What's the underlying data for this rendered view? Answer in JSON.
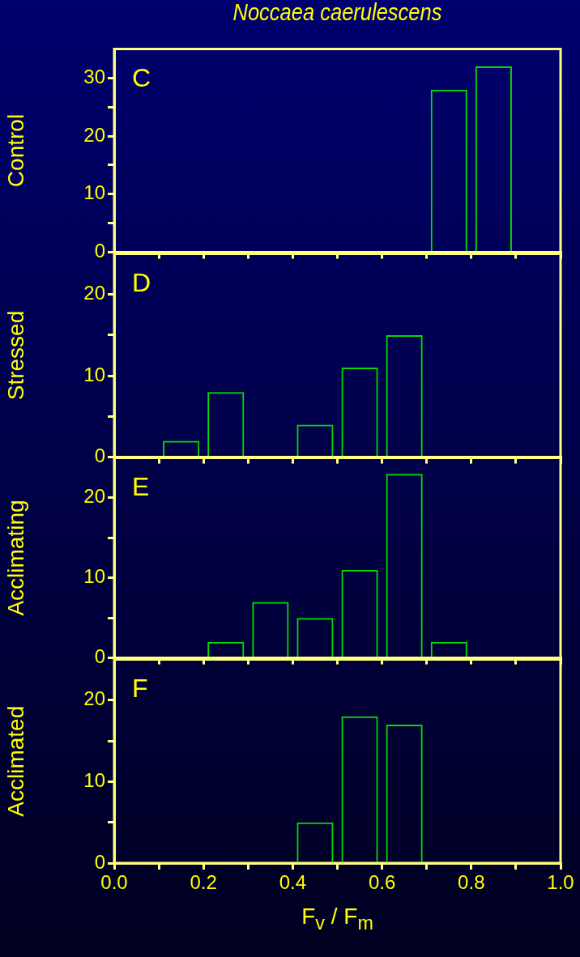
{
  "chart_data": [
    {
      "type": "bar",
      "title": "Noccaea caerulescens",
      "ylabel": "Control",
      "annotations": [
        "C"
      ],
      "x": [
        0.75,
        0.85
      ],
      "values": [
        28,
        32
      ],
      "color": "#00dd00",
      "xlim": [
        0,
        1
      ],
      "xticks": [
        0,
        0.1,
        0.2,
        0.3,
        0.4,
        0.5,
        0.6,
        0.7,
        0.8,
        0.9,
        1
      ],
      "ylim": [
        0,
        35
      ],
      "yticks": [
        0,
        {
          "value": 5,
          "label": null
        },
        10,
        {
          "value": 15,
          "label": null
        },
        20,
        {
          "value": 25,
          "label": null
        },
        30
      ],
      "tick_labels": "y"
    },
    {
      "type": "bar",
      "ylabel": "Stressed",
      "annotations": [
        "D"
      ],
      "x": [
        0.15,
        0.25,
        0.45,
        0.55,
        0.65
      ],
      "values": [
        2,
        8,
        4,
        11,
        15
      ],
      "color": "#00dd00",
      "xlim": [
        0,
        1
      ],
      "xticks": [
        0,
        0.1,
        0.2,
        0.3,
        0.4,
        0.5,
        0.6,
        0.7,
        0.8,
        0.9,
        1
      ],
      "ylim": [
        0,
        25
      ],
      "yticks": [
        0,
        {
          "value": 5,
          "label": null
        },
        10,
        {
          "value": 15,
          "label": null
        },
        20
      ],
      "tick_labels": "y"
    },
    {
      "type": "bar",
      "ylabel": "Acclimating",
      "annotations": [
        "E"
      ],
      "x": [
        0.25,
        0.35,
        0.45,
        0.55,
        0.65,
        0.75
      ],
      "values": [
        2,
        7,
        5,
        11,
        23,
        2
      ],
      "color": "#00dd00",
      "xlim": [
        0,
        1
      ],
      "xticks": [
        0,
        0.1,
        0.2,
        0.3,
        0.4,
        0.5,
        0.6,
        0.7,
        0.8,
        0.9,
        1
      ],
      "ylim": [
        0,
        25
      ],
      "yticks": [
        0,
        {
          "value": 5,
          "label": null
        },
        10,
        {
          "value": 15,
          "label": null
        },
        20
      ],
      "tick_labels": "y"
    },
    {
      "type": "bar",
      "xlabel": "F$_{v}$ / F$_{m}$",
      "ylabel": "Acclimated",
      "annotations": [
        "F"
      ],
      "x": [
        0.45,
        0.55,
        0.65
      ],
      "values": [
        5,
        18,
        17
      ],
      "color": "#00dd00",
      "xlim": [
        0,
        1
      ],
      "xticks": [
        {
          "value": 0,
          "label": "0.0"
        },
        {
          "value": 0.1,
          "label": null
        },
        0.2,
        {
          "value": 0.3,
          "label": null
        },
        0.4,
        {
          "value": 0.5,
          "label": null
        },
        0.6,
        {
          "value": 0.7,
          "label": null
        },
        0.8,
        {
          "value": 0.9,
          "label": null
        },
        {
          "value": 1,
          "label": "1.0"
        }
      ],
      "ylim": [
        0,
        25
      ],
      "yticks": [
        0,
        {
          "value": 5,
          "label": null
        },
        10,
        {
          "value": 15,
          "label": null
        },
        20
      ]
    }
  ]
}
